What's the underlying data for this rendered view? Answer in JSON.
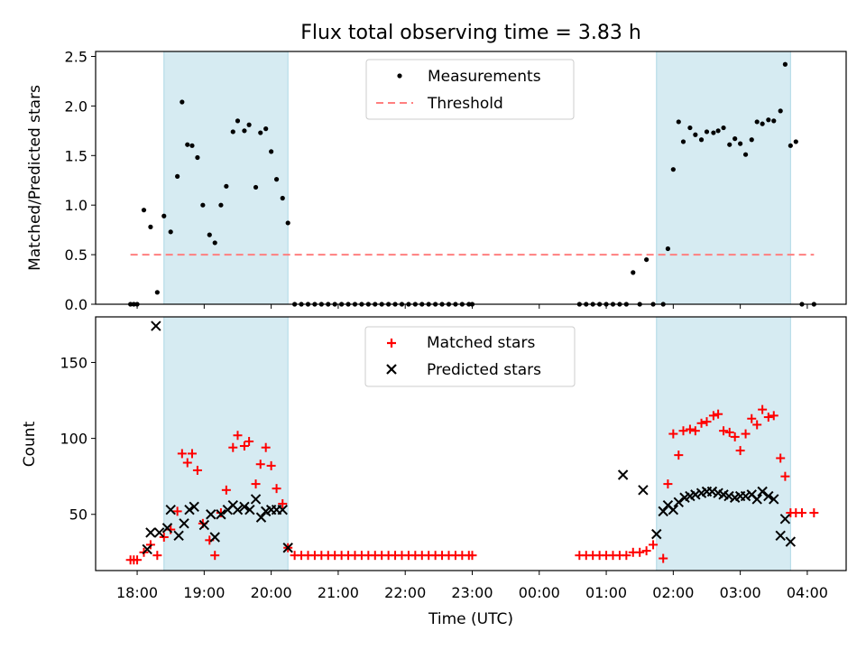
{
  "figure": {
    "title": "Flux total observing time = 3.83 h",
    "xlabel": "Time (UTC)",
    "x_tick_labels": [
      "18:00",
      "19:00",
      "20:00",
      "21:00",
      "22:00",
      "23:00",
      "00:00",
      "01:00",
      "02:00",
      "03:00",
      "04:00"
    ],
    "x_tick_hours": [
      0,
      1,
      2,
      3,
      4,
      5,
      6,
      7,
      8,
      9,
      10
    ],
    "xlim_hours_since_18utc": [
      -0.62,
      10.58
    ]
  },
  "colors": {
    "shade": "#add8e6",
    "threshold": "#ff7f7f",
    "matched": "#ff0000",
    "predicted": "#000000",
    "measurement": "#000000"
  },
  "chart_data": [
    {
      "type": "scatter",
      "ylabel": "Matched/Predicted stars",
      "ylim": [
        0,
        2.55
      ],
      "y_ticks": [
        0.0,
        0.5,
        1.0,
        1.5,
        2.0,
        2.5
      ],
      "y_tick_labels": [
        "0.0",
        "0.5",
        "1.0",
        "1.5",
        "2.0",
        "2.5"
      ],
      "legend": {
        "placement": "upper center",
        "entries": [
          "Measurements",
          "Threshold"
        ]
      },
      "threshold": {
        "name": "Threshold",
        "value": 0.5,
        "x_range": [
          -0.1,
          10.1
        ]
      },
      "shaded_intervals": [
        [
          0.4,
          2.25
        ],
        [
          7.75,
          9.75
        ]
      ],
      "series": [
        {
          "name": "Measurements",
          "x": [
            -0.1,
            -0.05,
            0.0,
            0.1,
            0.2,
            0.3,
            0.4,
            0.5,
            0.6,
            0.67,
            0.75,
            0.82,
            0.9,
            0.98,
            1.08,
            1.16,
            1.25,
            1.33,
            1.43,
            1.5,
            1.6,
            1.67,
            1.77,
            1.84,
            1.92,
            2.0,
            2.08,
            2.17,
            2.25,
            2.35,
            2.45,
            2.55,
            2.65,
            2.75,
            2.85,
            2.95,
            3.05,
            3.15,
            3.25,
            3.35,
            3.45,
            3.55,
            3.65,
            3.75,
            3.85,
            3.95,
            4.05,
            4.15,
            4.25,
            4.35,
            4.45,
            4.55,
            4.65,
            4.75,
            4.85,
            4.95,
            5.0,
            6.6,
            6.7,
            6.8,
            6.9,
            7.0,
            7.1,
            7.2,
            7.3,
            7.4,
            7.5,
            7.6,
            7.7,
            7.85,
            7.92,
            8.0,
            8.08,
            8.15,
            8.25,
            8.33,
            8.42,
            8.5,
            8.6,
            8.67,
            8.75,
            8.84,
            8.92,
            9.0,
            9.08,
            9.17,
            9.25,
            9.33,
            9.42,
            9.5,
            9.6,
            9.67,
            9.75,
            9.83,
            9.92,
            10.1
          ],
          "y": [
            0.0,
            0.0,
            0.0,
            0.95,
            0.78,
            0.12,
            0.89,
            0.73,
            1.29,
            2.04,
            1.61,
            1.6,
            1.48,
            1.0,
            0.7,
            0.62,
            1.0,
            1.19,
            1.74,
            1.85,
            1.75,
            1.81,
            1.18,
            1.73,
            1.77,
            1.54,
            1.26,
            1.07,
            0.82,
            0.0,
            0.0,
            0.0,
            0.0,
            0.0,
            0.0,
            0.0,
            0.0,
            0.0,
            0.0,
            0.0,
            0.0,
            0.0,
            0.0,
            0.0,
            0.0,
            0.0,
            0.0,
            0.0,
            0.0,
            0.0,
            0.0,
            0.0,
            0.0,
            0.0,
            0.0,
            0.0,
            0.0,
            0.0,
            0.0,
            0.0,
            0.0,
            0.0,
            0.0,
            0.0,
            0.0,
            0.32,
            0.0,
            0.45,
            0.0,
            0.0,
            0.56,
            1.36,
            1.84,
            1.64,
            1.78,
            1.71,
            1.66,
            1.74,
            1.73,
            1.75,
            1.78,
            1.61,
            1.67,
            1.62,
            1.51,
            1.66,
            1.84,
            1.82,
            1.86,
            1.85,
            1.95,
            2.42,
            1.6,
            1.64,
            0.0,
            0.0
          ]
        }
      ]
    },
    {
      "type": "scatter",
      "ylabel": "Count",
      "ylim": [
        13,
        180
      ],
      "y_ticks": [
        50,
        100,
        150
      ],
      "y_tick_labels": [
        "50",
        "100",
        "150"
      ],
      "legend": {
        "placement": "upper center",
        "entries": [
          "Matched stars",
          "Predicted stars"
        ]
      },
      "shaded_intervals": [
        [
          0.4,
          2.25
        ],
        [
          7.75,
          9.75
        ]
      ],
      "series": [
        {
          "name": "Matched stars",
          "marker": "plus",
          "x": [
            -0.1,
            -0.05,
            0.0,
            0.1,
            0.2,
            0.3,
            0.4,
            0.5,
            0.6,
            0.67,
            0.75,
            0.82,
            0.9,
            0.98,
            1.08,
            1.16,
            1.25,
            1.33,
            1.43,
            1.5,
            1.6,
            1.67,
            1.77,
            1.84,
            1.92,
            2.0,
            2.08,
            2.17,
            2.25,
            2.35,
            2.45,
            2.55,
            2.65,
            2.75,
            2.85,
            2.95,
            3.05,
            3.15,
            3.25,
            3.35,
            3.45,
            3.55,
            3.65,
            3.75,
            3.85,
            3.95,
            4.05,
            4.15,
            4.25,
            4.35,
            4.45,
            4.55,
            4.65,
            4.75,
            4.85,
            4.95,
            5.0,
            6.6,
            6.7,
            6.8,
            6.9,
            7.0,
            7.1,
            7.2,
            7.3,
            7.4,
            7.5,
            7.6,
            7.7,
            7.85,
            7.92,
            8.0,
            8.08,
            8.15,
            8.25,
            8.33,
            8.42,
            8.5,
            8.6,
            8.67,
            8.75,
            8.84,
            8.92,
            9.0,
            9.08,
            9.17,
            9.25,
            9.33,
            9.42,
            9.5,
            9.6,
            9.67,
            9.75,
            9.83,
            9.92,
            10.1
          ],
          "y": [
            20,
            20,
            20,
            25,
            30,
            23,
            35,
            40,
            52,
            90,
            84,
            90,
            79,
            44,
            33,
            23,
            51,
            66,
            94,
            102,
            95,
            98,
            70,
            83,
            94,
            82,
            67,
            57,
            28,
            23,
            23,
            23,
            23,
            23,
            23,
            23,
            23,
            23,
            23,
            23,
            23,
            23,
            23,
            23,
            23,
            23,
            23,
            23,
            23,
            23,
            23,
            23,
            23,
            23,
            23,
            23,
            23,
            23,
            23,
            23,
            23,
            23,
            23,
            23,
            23,
            25,
            25,
            26,
            30,
            21,
            70,
            103,
            89,
            105,
            106,
            105,
            110,
            111,
            115,
            116,
            105,
            104,
            101,
            92,
            103,
            113,
            109,
            119,
            114,
            115,
            87,
            75,
            51,
            51,
            51,
            51
          ]
        },
        {
          "name": "Predicted stars",
          "marker": "x",
          "x": [
            0.15,
            0.2,
            0.28,
            0.33,
            0.45,
            0.5,
            0.62,
            0.7,
            0.78,
            0.85,
            1.0,
            1.1,
            1.16,
            1.25,
            1.35,
            1.43,
            1.5,
            1.6,
            1.68,
            1.77,
            1.85,
            1.92,
            2.0,
            2.08,
            2.17,
            2.25,
            7.25,
            7.55,
            7.75,
            7.85,
            7.92,
            8.0,
            8.08,
            8.17,
            8.25,
            8.33,
            8.42,
            8.5,
            8.58,
            8.67,
            8.75,
            8.83,
            8.92,
            9.0,
            9.08,
            9.17,
            9.25,
            9.33,
            9.42,
            9.5,
            9.6,
            9.67,
            9.75
          ],
          "y": [
            27,
            38,
            174,
            38,
            41,
            53,
            36,
            44,
            53,
            55,
            43,
            50,
            35,
            50,
            53,
            56,
            53,
            55,
            53,
            60,
            48,
            52,
            53,
            53,
            53,
            28,
            76,
            66,
            37,
            52,
            56,
            53,
            58,
            61,
            62,
            63,
            64,
            65,
            65,
            64,
            63,
            62,
            61,
            62,
            62,
            63,
            60,
            65,
            62,
            60,
            36,
            47,
            32
          ]
        }
      ]
    }
  ]
}
